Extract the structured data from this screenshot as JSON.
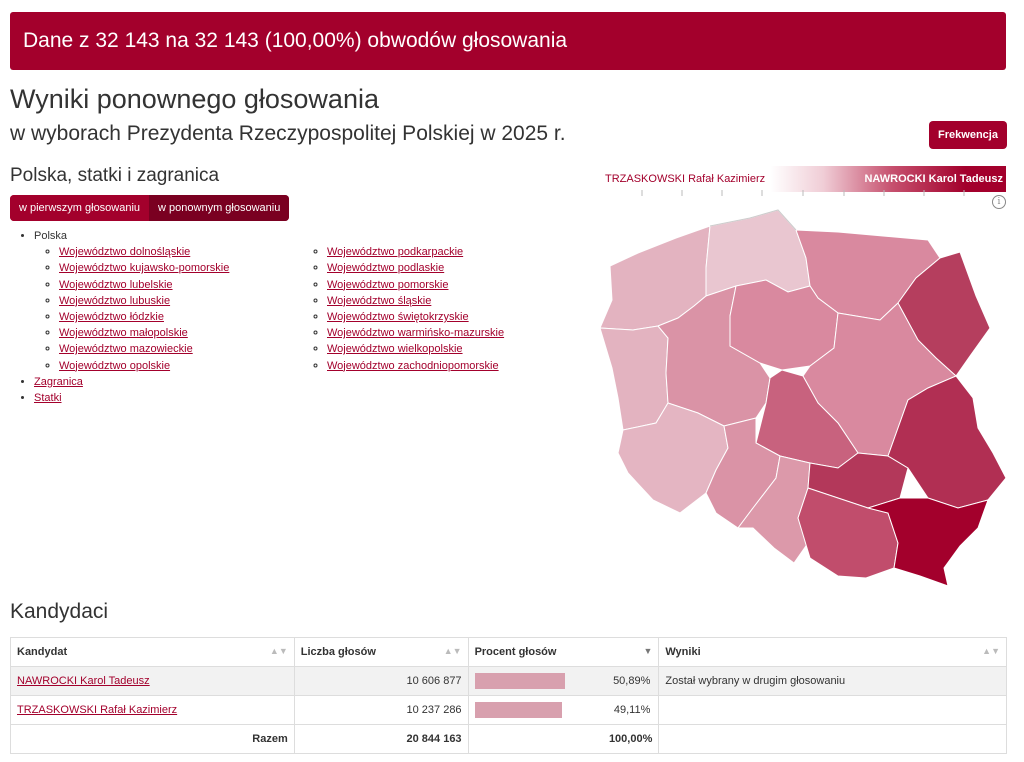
{
  "banner": "Dane z 32 143 na 32 143 (100,00%) obwodów głosowania",
  "title": "Wyniki ponownego głosowania",
  "subtitle": "w wyborach Prezydenta Rzeczypospolitej Polskiej w 2025 r.",
  "frekwencja_button": "Frekwencja",
  "region_title": "Polska, statki i zagranica",
  "toggle": {
    "first": "w pierwszym głosowaniu",
    "second": "w ponownym głosowaniu"
  },
  "tree": {
    "root": "Polska",
    "col1": [
      "Województwo dolnośląskie",
      "Województwo kujawsko-pomorskie",
      "Województwo lubelskie",
      "Województwo lubuskie",
      "Województwo łódzkie",
      "Województwo małopolskie",
      "Województwo mazowieckie",
      "Województwo opolskie"
    ],
    "col2": [
      "Województwo podkarpackie",
      "Województwo podlaskie",
      "Województwo pomorskie",
      "Województwo śląskie",
      "Województwo świętokrzyskie",
      "Województwo warmińsko-mazurskie",
      "Województwo wielkopolskie",
      "Województwo zachodniopomorskie"
    ],
    "zagranica": "Zagranica",
    "statki": "Statki"
  },
  "legend": {
    "left": "TRZASKOWSKI Rafał Kazimierz",
    "right": "NAWROCKI Karol Tadeusz"
  },
  "info_icon": "info-icon",
  "candidates_title": "Kandydaci",
  "table": {
    "headers": [
      "Kandydat",
      "Liczba głosów",
      "Procent głosów",
      "Wyniki"
    ],
    "rows": [
      {
        "name": "NAWROCKI Karol Tadeusz",
        "votes": "10 606 877",
        "percent": "50,89%",
        "percent_value": 50.89,
        "result": "Został wybrany w drugim głosowaniu"
      },
      {
        "name": "TRZASKOWSKI Rafał Kazimierz",
        "votes": "10 237 286",
        "percent": "49,11%",
        "percent_value": 49.11,
        "result": ""
      }
    ],
    "total": {
      "label": "Razem",
      "votes": "20 844 163",
      "percent": "100,00%"
    }
  },
  "colors": {
    "accent": "#a3002c",
    "bar": "#d8a0ae"
  }
}
